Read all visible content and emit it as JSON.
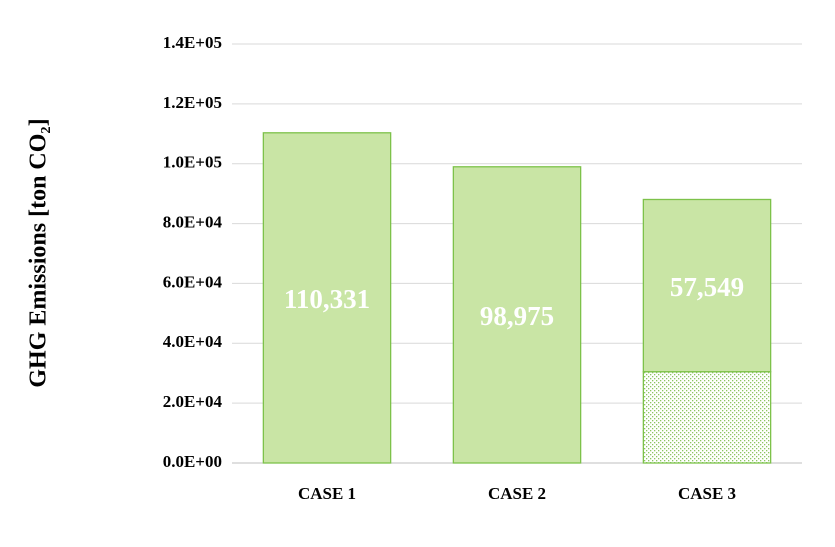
{
  "chart_data": {
    "type": "stacked_bar",
    "y_label": "GHG Emissions [ton CO₂]",
    "categories": [
      "CASE 1",
      "CASE 2",
      "CASE 3"
    ],
    "series": [
      {
        "color": "#c9e5a5",
        "edge_color": "#7dc24a",
        "pattern": "dots",
        "values": [
          null,
          null,
          30500
        ]
      },
      {
        "color": "#c9e5a5",
        "edge_color": "#7dc24a",
        "values": [
          110331,
          98975,
          57549
        ],
        "value_labels": [
          "110,331",
          "98,975",
          "57,549"
        ]
      }
    ],
    "ylim": [
      0,
      140000
    ],
    "yticks": [
      {
        "value": 0,
        "label": "0.0E+00"
      },
      {
        "value": 20000,
        "label": "2.0E+04"
      },
      {
        "value": 40000,
        "label": "4.0E+04"
      },
      {
        "value": 60000,
        "label": "6.0E+04"
      },
      {
        "value": 80000,
        "label": "8.0E+04"
      },
      {
        "value": 100000,
        "label": "1.0E+05"
      },
      {
        "value": 120000,
        "label": "1.2E+05"
      },
      {
        "value": 140000,
        "label": "1.4E+05"
      }
    ],
    "grid": true
  }
}
